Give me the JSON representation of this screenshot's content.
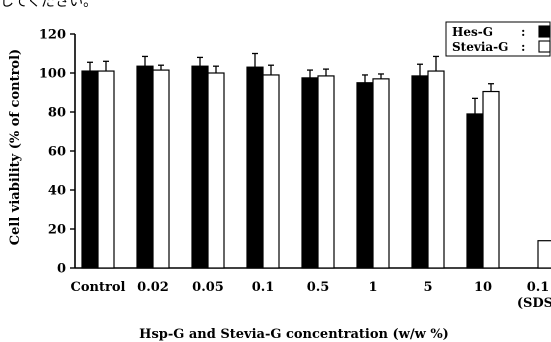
{
  "top_note": "してください。",
  "chart_data": {
    "type": "bar",
    "xlabel": "Hsp-G and Stevia-G concentration (w/w %)",
    "ylabel": "Cell viability (% of control)",
    "ylim": [
      0,
      120
    ],
    "yticks": [
      0,
      20,
      40,
      60,
      80,
      100,
      120
    ],
    "grid": false,
    "legend_position": "top-right",
    "categories": [
      {
        "label": "Control",
        "sub": ""
      },
      {
        "label": "0.02",
        "sub": ""
      },
      {
        "label": "0.05",
        "sub": ""
      },
      {
        "label": "0.1",
        "sub": ""
      },
      {
        "label": "0.5",
        "sub": ""
      },
      {
        "label": "1",
        "sub": ""
      },
      {
        "label": "5",
        "sub": ""
      },
      {
        "label": "10",
        "sub": ""
      },
      {
        "label": "0.1",
        "sub": "(SDS)"
      }
    ],
    "series": [
      {
        "name": "Hes-G",
        "legend_sep": ":",
        "color": "#000000",
        "values": [
          101,
          103.5,
          103.5,
          103,
          97.5,
          95,
          98.5,
          79,
          null
        ],
        "errors": [
          4.5,
          5,
          4.5,
          7,
          4,
          4,
          6,
          8,
          null
        ]
      },
      {
        "name": "Stevia-G",
        "legend_sep": ":",
        "color": "#ffffff",
        "values": [
          101,
          101.5,
          100,
          99,
          98.5,
          97,
          101,
          90.5,
          14
        ],
        "errors": [
          5,
          2.5,
          3.5,
          5,
          3.5,
          2.5,
          7.5,
          4,
          0
        ]
      }
    ]
  }
}
